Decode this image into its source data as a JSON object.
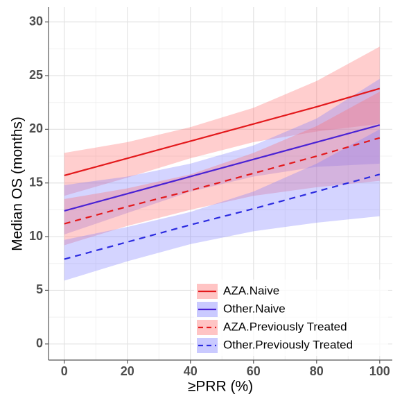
{
  "chart_data": {
    "type": "line",
    "x_label": "≥PRR (%)",
    "y_label": "Median OS (months)",
    "x": [
      0,
      20,
      40,
      60,
      80,
      100
    ],
    "xlim": [
      -5,
      104
    ],
    "ylim": [
      -1.5,
      31.4
    ],
    "xticks": [
      0,
      20,
      40,
      60,
      80,
      100
    ],
    "yticks": [
      0,
      5,
      10,
      15,
      20,
      25,
      30
    ],
    "grid": true,
    "legend_position": "bottom-right",
    "series": [
      {
        "name": "AZA.Naive",
        "color": "#e3191c",
        "band_color": "#ff6b6b",
        "dashed": false,
        "values": [
          15.7,
          17.3,
          18.9,
          20.5,
          22.1,
          23.8
        ],
        "lower": [
          13.8,
          15.5,
          17.3,
          18.8,
          19.8,
          20.5
        ],
        "upper": [
          17.8,
          18.8,
          20.2,
          22.0,
          24.5,
          27.7
        ]
      },
      {
        "name": "Other.Naive",
        "color": "#4a22d4",
        "band_color": "#7b7bff",
        "dashed": false,
        "values": [
          12.4,
          14.0,
          15.6,
          17.2,
          18.8,
          20.4
        ],
        "lower": [
          10.2,
          12.2,
          14.2,
          15.6,
          16.5,
          16.8
        ],
        "upper": [
          14.8,
          15.6,
          16.8,
          18.5,
          21.0,
          24.7
        ]
      },
      {
        "name": "AZA.Previously Treated",
        "color": "#e3191c",
        "band_color": "#ff6b6b",
        "dashed": true,
        "values": [
          11.2,
          12.8,
          14.3,
          15.9,
          17.5,
          19.2
        ],
        "lower": [
          9.2,
          11.0,
          12.5,
          13.8,
          14.6,
          15.2
        ],
        "upper": [
          13.5,
          14.5,
          15.8,
          17.8,
          20.3,
          23.5
        ]
      },
      {
        "name": "Other.Previously Treated",
        "color": "#2b2be0",
        "band_color": "#7b7bff",
        "dashed": true,
        "values": [
          7.9,
          9.5,
          11.1,
          12.6,
          14.2,
          15.8
        ],
        "lower": [
          5.9,
          7.7,
          9.3,
          10.5,
          11.3,
          11.9
        ],
        "upper": [
          9.7,
          10.9,
          12.3,
          14.2,
          16.8,
          20.0
        ]
      }
    ]
  }
}
